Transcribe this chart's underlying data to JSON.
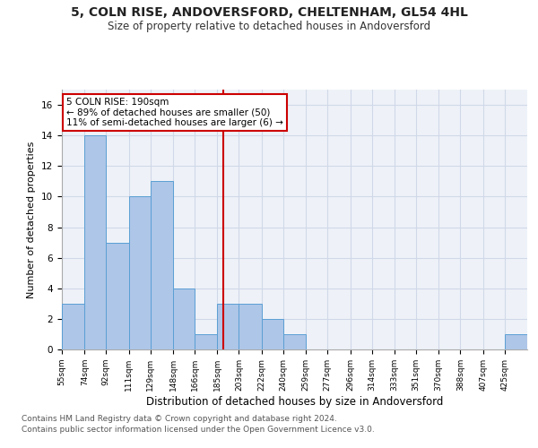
{
  "title1": "5, COLN RISE, ANDOVERSFORD, CHELTENHAM, GL54 4HL",
  "title2": "Size of property relative to detached houses in Andoversford",
  "xlabel": "Distribution of detached houses by size in Andoversford",
  "ylabel": "Number of detached properties",
  "footnote1": "Contains HM Land Registry data © Crown copyright and database right 2024.",
  "footnote2": "Contains public sector information licensed under the Open Government Licence v3.0.",
  "bin_edges": [
    55,
    74,
    92,
    111,
    129,
    148,
    166,
    185,
    203,
    222,
    240,
    259,
    277,
    296,
    314,
    333,
    351,
    370,
    388,
    407,
    425
  ],
  "bar_heights": [
    3,
    14,
    7,
    10,
    11,
    4,
    1,
    3,
    3,
    2,
    1,
    0,
    0,
    0,
    0,
    0,
    0,
    0,
    0,
    0,
    1
  ],
  "bar_color": "#aec6e8",
  "bar_edge_color": "#5a9fd4",
  "subject_value": 190,
  "vline_color": "#cc0000",
  "annotation_line1": "5 COLN RISE: 190sqm",
  "annotation_line2": "← 89% of detached houses are smaller (50)",
  "annotation_line3": "11% of semi-detached houses are larger (6) →",
  "annotation_box_color": "#cc0000",
  "ylim": [
    0,
    17
  ],
  "yticks": [
    0,
    2,
    4,
    6,
    8,
    10,
    12,
    14,
    16
  ],
  "grid_color": "#d0d8e8",
  "bg_color": "#eef2f8",
  "title1_fontsize": 10,
  "title2_fontsize": 8.5,
  "xlabel_fontsize": 8.5,
  "ylabel_fontsize": 8,
  "footnote_fontsize": 6.5,
  "annotation_fontsize": 7.5
}
